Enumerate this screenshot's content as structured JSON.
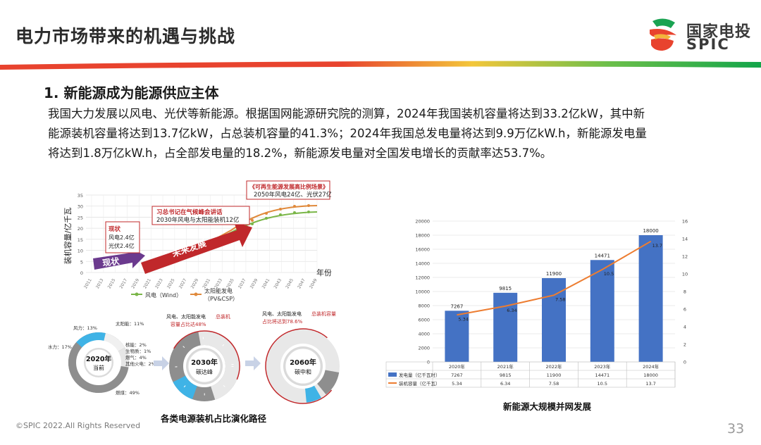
{
  "header": {
    "title": "电力市场带来的机遇与挑战",
    "logo_cn": "国家电投",
    "logo_en": "SPIC"
  },
  "section": {
    "title": "1.   新能源成为能源供应主体",
    "paragraph_lines": [
      "我国大力发展以风电、光伏等新能源。根据国网能源研究院的测算，2024年我国装机容量将达到33.2亿kW，其中新",
      "能源装机容量将达到13.7亿kW，占总装机容量的41.3%；2024年我国总发电量将达到9.9万亿kW.h，新能源发电量",
      "将达到1.8万亿kW.h，占全部发电量的18.2%，新能源发电量对全国发电增长的贡献率达53.7%。"
    ]
  },
  "left_figure": {
    "caption": "各类电源装机占比演化路径",
    "line_chart": {
      "ylabel": "装机容量/亿千瓦",
      "xlabel": "年份",
      "y_ticks": [
        "0",
        "5",
        "10",
        "15",
        "20",
        "25",
        "30",
        "35"
      ],
      "x_ticks": [
        "2011",
        "2013",
        "2015",
        "2017",
        "2019",
        "2021",
        "2023",
        "2025",
        "2027",
        "2029",
        "2031",
        "2033",
        "2035",
        "2037",
        "2039",
        "2041",
        "2043",
        "2045",
        "2047",
        "2049"
      ],
      "callout_now_title": "现状",
      "callout_now_line1": "风电2.4亿",
      "callout_now_line2": "光伏2.4亿",
      "arrow_now": "现状",
      "arrow_future": "未来发展",
      "callout_mid_title": "习总书记在气候峰会讲话",
      "callout_mid_text": "2030年风电与太阳能装机12亿",
      "callout_top_title": "《可再生能源发展高比例场景》",
      "callout_top_text": "2050年风电24亿、光伏27亿",
      "legend_wind": "风电（Wind）",
      "legend_solar_1": "太阳能发电",
      "legend_solar_2": "（PV&CSP）",
      "colors": {
        "wind": "#7ab648",
        "solar": "#e08a3c",
        "arrow_red": "#c0282b",
        "arrow_purple": "#6b3a8e"
      }
    },
    "donut_2020": {
      "center_year": "2020年",
      "center_label": "当前",
      "labels": [
        "风力：13%",
        "太阳能：11%",
        "核能：2%",
        "生物质：1%",
        "燃气：4%",
        "其他火电：2%",
        "水力：17%",
        "燃煤：49%"
      ]
    },
    "donut_2030": {
      "center_year": "2030年",
      "center_label": "碳达峰",
      "note_prefix": "风电、太阳能发电",
      "note_highlight": "总装机",
      "note_line2_highlight": "容量占比达48%"
    },
    "donut_2060": {
      "center_year": "2060年",
      "center_label": "碳中和",
      "note_prefix": "风电、太阳能发电",
      "note_highlight": "总装机容量",
      "note_line2_highlight": "占比将达到78.6%"
    }
  },
  "right_figure": {
    "caption": "新能源大规模并网发展",
    "chart_data": {
      "type": "bar",
      "categories": [
        "2020年",
        "2021年",
        "2022年",
        "2023年",
        "2024年"
      ],
      "series": [
        {
          "name": "发电量（亿千瓦时）",
          "type": "bar",
          "axis": "left",
          "values": [
            7267,
            9815,
            11900,
            14471,
            18000
          ],
          "color": "#4472c4"
        },
        {
          "name": "装机容量（亿千瓦）",
          "type": "line",
          "axis": "right",
          "values": [
            5.34,
            6.34,
            7.58,
            10.5,
            13.7
          ],
          "color": "#ed7d31"
        }
      ],
      "bar_labels": [
        "7267",
        "9815",
        "11900",
        "14471",
        "18000"
      ],
      "line_labels": [
        "5.34",
        "6.34",
        "7.58",
        "10.5",
        "13.7"
      ],
      "table_values_bar": [
        "7267",
        "9815",
        "11900",
        "14471",
        "18000"
      ],
      "table_values_line": [
        "5.34",
        "6.34",
        "7.58",
        "10.5",
        "13.7"
      ],
      "ylim_left": [
        0,
        20000
      ],
      "ylim_right": [
        0,
        16
      ],
      "y_ticks_left": [
        "0",
        "2000",
        "4000",
        "6000",
        "8000",
        "10000",
        "12000",
        "14000",
        "16000",
        "18000",
        "20000"
      ],
      "y_ticks_right": [
        "0",
        "2",
        "4",
        "6",
        "8",
        "10",
        "12",
        "14",
        "16"
      ],
      "grid": true
    }
  },
  "footer": {
    "copyright": "©SPIC 2022.All Rights Reserved",
    "page_number": "33"
  }
}
